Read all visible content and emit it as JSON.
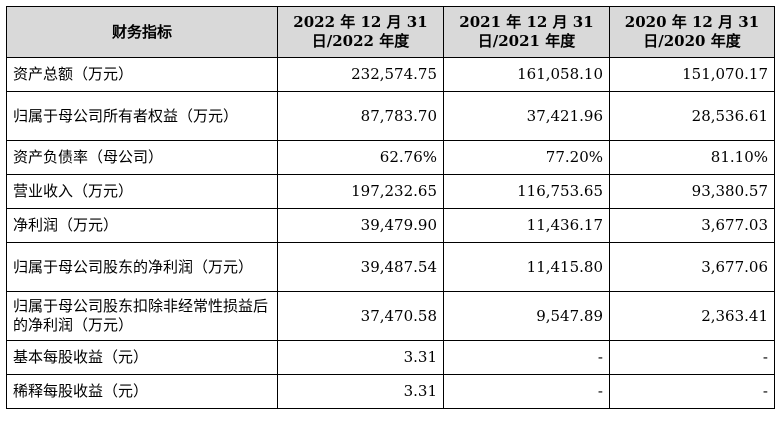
{
  "table": {
    "headers": [
      "财务指标",
      "2022 年 12 月 31 日/2022 年度",
      "2021 年 12 月 31 日/2021 年度",
      "2020 年 12 月 31 日/2020 年度"
    ],
    "rows": [
      {
        "label": "资产总额（万元）",
        "values": [
          "232,574.75",
          "161,058.10",
          "151,070.17"
        ]
      },
      {
        "label": "归属于母公司所有者权益（万元）",
        "values": [
          "87,783.70",
          "37,421.96",
          "28,536.61"
        ]
      },
      {
        "label": "资产负债率（母公司）",
        "values": [
          "62.76%",
          "77.20%",
          "81.10%"
        ]
      },
      {
        "label": "营业收入（万元）",
        "values": [
          "197,232.65",
          "116,753.65",
          "93,380.57"
        ]
      },
      {
        "label": "净利润（万元）",
        "values": [
          "39,479.90",
          "11,436.17",
          "3,677.03"
        ]
      },
      {
        "label": "归属于母公司股东的净利润（万元）",
        "values": [
          "39,487.54",
          "11,415.80",
          "3,677.06"
        ]
      },
      {
        "label": "归属于母公司股东扣除非经常性损益后的净利润（万元）",
        "values": [
          "37,470.58",
          "9,547.89",
          "2,363.41"
        ]
      },
      {
        "label": "基本每股收益（元）",
        "values": [
          "3.31",
          "-",
          "-"
        ]
      },
      {
        "label": "稀释每股收益（元）",
        "values": [
          "3.31",
          "-",
          "-"
        ]
      }
    ]
  }
}
